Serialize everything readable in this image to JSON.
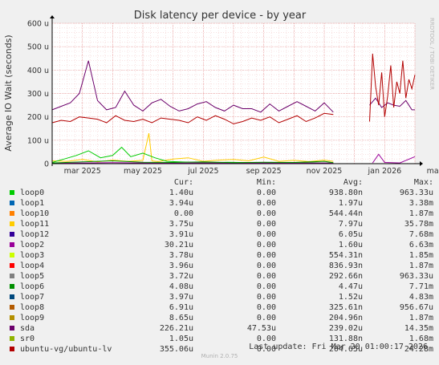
{
  "colors": {
    "background": "#f0f0f0",
    "plot_bg": "#ffffff",
    "grid_major": "#e8a0a0",
    "grid_minor": "#f3cccc",
    "axis": "#000000"
  },
  "watermark": "RRDTOOL / TOBI OETIKER",
  "legend_headers": {
    "cur": "Cur:",
    "min": "Min:",
    "avg": "Avg:",
    "max": "Max:"
  },
  "footer": {
    "last_update": "Last update: Fri Mar 20 01:00:17 2026",
    "munin": "Munin 2.0.75"
  },
  "legend": [
    {
      "name": "loop0",
      "color": "#00cc00",
      "cur": "1.40u",
      "min": "0.00",
      "avg": "938.80n",
      "max": "963.33u"
    },
    {
      "name": "loop1",
      "color": "#0066b3",
      "cur": "3.94u",
      "min": "0.00",
      "avg": "1.97u",
      "max": "3.38m"
    },
    {
      "name": "loop10",
      "color": "#ff8000",
      "cur": "0.00",
      "min": "0.00",
      "avg": "544.44n",
      "max": "1.87m"
    },
    {
      "name": "loop11",
      "color": "#ffcc00",
      "cur": "3.75u",
      "min": "0.00",
      "avg": "7.97u",
      "max": "35.78m"
    },
    {
      "name": "loop12",
      "color": "#330099",
      "cur": "3.91u",
      "min": "0.00",
      "avg": "6.05u",
      "max": "7.68m"
    },
    {
      "name": "loop2",
      "color": "#990099",
      "cur": "30.21u",
      "min": "0.00",
      "avg": "1.60u",
      "max": "6.63m"
    },
    {
      "name": "loop3",
      "color": "#ccff00",
      "cur": "3.78u",
      "min": "0.00",
      "avg": "554.31n",
      "max": "1.85m"
    },
    {
      "name": "loop4",
      "color": "#ff0000",
      "cur": "3.96u",
      "min": "0.00",
      "avg": "836.93n",
      "max": "1.87m"
    },
    {
      "name": "loop5",
      "color": "#808080",
      "cur": "3.72u",
      "min": "0.00",
      "avg": "292.66n",
      "max": "963.33u"
    },
    {
      "name": "loop6",
      "color": "#008f00",
      "cur": "4.08u",
      "min": "0.00",
      "avg": "4.47u",
      "max": "7.71m"
    },
    {
      "name": "loop7",
      "color": "#00487d",
      "cur": "3.97u",
      "min": "0.00",
      "avg": "1.52u",
      "max": "4.83m"
    },
    {
      "name": "loop8",
      "color": "#b35a00",
      "cur": "6.91u",
      "min": "0.00",
      "avg": "325.61n",
      "max": "956.67u"
    },
    {
      "name": "loop9",
      "color": "#b38f00",
      "cur": "8.65u",
      "min": "0.00",
      "avg": "204.96n",
      "max": "1.87m"
    },
    {
      "name": "sda",
      "color": "#6b006b",
      "cur": "226.21u",
      "min": "47.53u",
      "avg": "239.02u",
      "max": "14.35m"
    },
    {
      "name": "sr0",
      "color": "#8fb300",
      "cur": "1.05u",
      "min": "0.00",
      "avg": "131.88n",
      "max": "1.68m"
    },
    {
      "name": "ubuntu-vg/ubuntu-lv",
      "color": "#b30000",
      "cur": "355.06u",
      "min": "0.00",
      "avg": "204.65u",
      "max": "24.28m"
    }
  ],
  "chart_data": {
    "type": "line",
    "title": "Disk latency per device - by year",
    "ylabel": "Average IO Wait (seconds)",
    "xlabel": "",
    "ylim": [
      0,
      600
    ],
    "y_unit": "u",
    "yticks": [
      0,
      100,
      200,
      300,
      400,
      500,
      600
    ],
    "ytick_labels": [
      "0",
      "100 u",
      "200 u",
      "300 u",
      "400 u",
      "500 u",
      "600 u"
    ],
    "xlim": [
      0,
      12
    ],
    "xticks": [
      1,
      3,
      5,
      7,
      9,
      11,
      13
    ],
    "xtick_labels": [
      "mar 2025",
      "may 2025",
      "jul 2025",
      "sep 2025",
      "nov 2025",
      "jan 2026",
      "mar 2026"
    ],
    "x_unit": "months since mid-January 2025",
    "grid": true,
    "series": [
      {
        "name": "sda",
        "color": "#6b006b",
        "x": [
          0.0,
          0.3,
          0.6,
          0.9,
          1.2,
          1.5,
          1.8,
          2.1,
          2.4,
          2.7,
          3.0,
          3.3,
          3.6,
          3.9,
          4.2,
          4.5,
          4.8,
          5.1,
          5.4,
          5.7,
          6.0,
          6.3,
          6.6,
          6.9,
          7.2,
          7.5,
          7.8,
          8.1,
          8.4,
          8.7,
          9.0,
          9.3,
          null,
          10.5,
          10.7,
          10.9,
          11.1,
          11.3,
          11.5,
          11.7,
          11.9,
          12.0
        ],
        "y": [
          230,
          245,
          260,
          300,
          440,
          270,
          230,
          240,
          310,
          250,
          225,
          260,
          275,
          245,
          225,
          235,
          255,
          265,
          240,
          225,
          250,
          235,
          235,
          220,
          255,
          225,
          245,
          265,
          245,
          225,
          260,
          220,
          null,
          250,
          280,
          240,
          260,
          250,
          245,
          270,
          230,
          230
        ]
      },
      {
        "name": "ubuntu-vg/ubuntu-lv",
        "color": "#b30000",
        "x": [
          0.0,
          0.3,
          0.6,
          0.9,
          1.2,
          1.5,
          1.8,
          2.1,
          2.4,
          2.7,
          3.0,
          3.3,
          3.6,
          3.9,
          4.2,
          4.5,
          4.8,
          5.1,
          5.4,
          5.7,
          6.0,
          6.3,
          6.6,
          6.9,
          7.2,
          7.5,
          7.8,
          8.1,
          8.4,
          8.7,
          9.0,
          9.3,
          null,
          10.5,
          10.6,
          10.7,
          10.8,
          10.9,
          11.0,
          11.1,
          11.2,
          11.3,
          11.4,
          11.5,
          11.6,
          11.7,
          11.8,
          11.9,
          12.0
        ],
        "y": [
          175,
          185,
          180,
          200,
          195,
          190,
          175,
          205,
          185,
          180,
          190,
          175,
          195,
          190,
          185,
          175,
          200,
          185,
          205,
          190,
          170,
          180,
          195,
          185,
          200,
          175,
          190,
          205,
          180,
          195,
          215,
          210,
          null,
          180,
          470,
          330,
          250,
          390,
          200,
          290,
          420,
          240,
          350,
          300,
          440,
          280,
          360,
          320,
          380
        ]
      },
      {
        "name": "loop11",
        "color": "#ffcc00",
        "x": [
          0.0,
          0.5,
          1.0,
          1.5,
          2.0,
          2.5,
          3.0,
          3.2,
          3.3,
          3.5,
          4.0,
          4.5,
          5.0,
          5.5,
          6.0,
          6.5,
          7.0,
          7.5,
          8.0,
          8.5,
          9.0,
          9.3
        ],
        "y": [
          12,
          10,
          18,
          8,
          15,
          10,
          14,
          130,
          12,
          9,
          20,
          25,
          10,
          15,
          18,
          12,
          28,
          10,
          14,
          9,
          15,
          10
        ]
      },
      {
        "name": "loop0",
        "color": "#00cc00",
        "x": [
          0.0,
          0.4,
          0.8,
          1.2,
          1.6,
          2.0,
          2.3,
          2.6,
          3.0,
          3.4,
          3.8,
          4.2,
          4.6,
          5.0,
          5.4,
          5.8,
          6.2,
          6.6,
          7.0,
          7.4,
          7.8,
          8.2,
          8.6,
          9.0,
          9.3
        ],
        "y": [
          5,
          20,
          35,
          55,
          25,
          35,
          70,
          30,
          45,
          25,
          10,
          8,
          6,
          5,
          4,
          6,
          5,
          4,
          3,
          5,
          4,
          3,
          4,
          3,
          3
        ]
      },
      {
        "name": "loop2",
        "color": "#990099",
        "x": [
          0.0,
          1.0,
          2.0,
          3.0,
          4.0,
          5.0,
          6.0,
          7.0,
          8.0,
          9.0,
          9.3,
          null,
          10.6,
          10.8,
          11.0,
          11.5,
          12.0
        ],
        "y": [
          2,
          3,
          4,
          3,
          2,
          3,
          2,
          3,
          2,
          3,
          2,
          null,
          3,
          40,
          5,
          3,
          30
        ]
      },
      {
        "name": "loop6",
        "color": "#008f00",
        "x": [
          0.0,
          1.0,
          2.0,
          3.0,
          4.0,
          5.0,
          6.0,
          7.0,
          8.0,
          9.0,
          9.3
        ],
        "y": [
          3,
          8,
          12,
          6,
          5,
          8,
          4,
          6,
          5,
          10,
          4
        ]
      }
    ]
  }
}
